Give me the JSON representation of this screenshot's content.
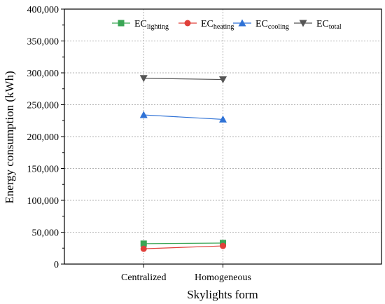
{
  "chart_data": {
    "type": "line",
    "xlabel": "Skylights form",
    "ylabel": "Energy consumption (kWh)",
    "categories": [
      "Centralized",
      "Homogeneous"
    ],
    "ylim": [
      0,
      400000
    ],
    "yticks": [
      0,
      50000,
      100000,
      150000,
      200000,
      250000,
      300000,
      350000,
      400000
    ],
    "ytick_labels": [
      "0",
      "50,000",
      "100,000",
      "150,000",
      "200,000",
      "250,000",
      "300,000",
      "350,000",
      "400,000"
    ],
    "grid": true,
    "legend_position": "top",
    "series": [
      {
        "key": "lighting",
        "name_main": "EC",
        "name_sub": "lighting",
        "color": "#3aa655",
        "marker": "square",
        "values": [
          32000,
          33000
        ]
      },
      {
        "key": "heating",
        "name_main": "EC",
        "name_sub": "heating",
        "color": "#e0403a",
        "marker": "circle",
        "values": [
          24000,
          28500
        ]
      },
      {
        "key": "cooling",
        "name_main": "EC",
        "name_sub": "cooling",
        "color": "#2f72d6",
        "marker": "triangle-up",
        "values": [
          234000,
          227000
        ]
      },
      {
        "key": "total",
        "name_main": "EC",
        "name_sub": "total",
        "color": "#555555",
        "marker": "triangle-down",
        "values": [
          291500,
          289500
        ]
      }
    ]
  }
}
